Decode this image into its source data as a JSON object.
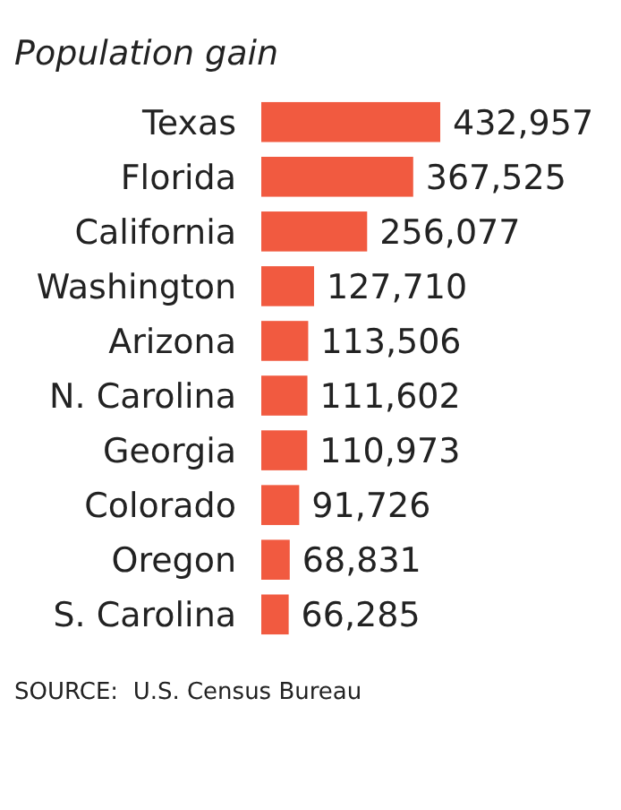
{
  "chart_data": {
    "type": "bar",
    "orientation": "horizontal",
    "title": "Population gain",
    "categories": [
      "Texas",
      "Florida",
      "California",
      "Washington",
      "Arizona",
      "N. Carolina",
      "Georgia",
      "Colorado",
      "Oregon",
      "S. Carolina"
    ],
    "values": [
      432957,
      367525,
      256077,
      127710,
      113506,
      111602,
      110973,
      91726,
      68831,
      66285
    ],
    "value_labels": [
      "432,957",
      "367,525",
      "256,077",
      "127,710",
      "113,506",
      "111,602",
      "110,973",
      "91,726",
      "68,831",
      "66,285"
    ],
    "color": "#f15a40",
    "annotations": [
      "SOURCE:  U.S. Census Bureau"
    ]
  }
}
